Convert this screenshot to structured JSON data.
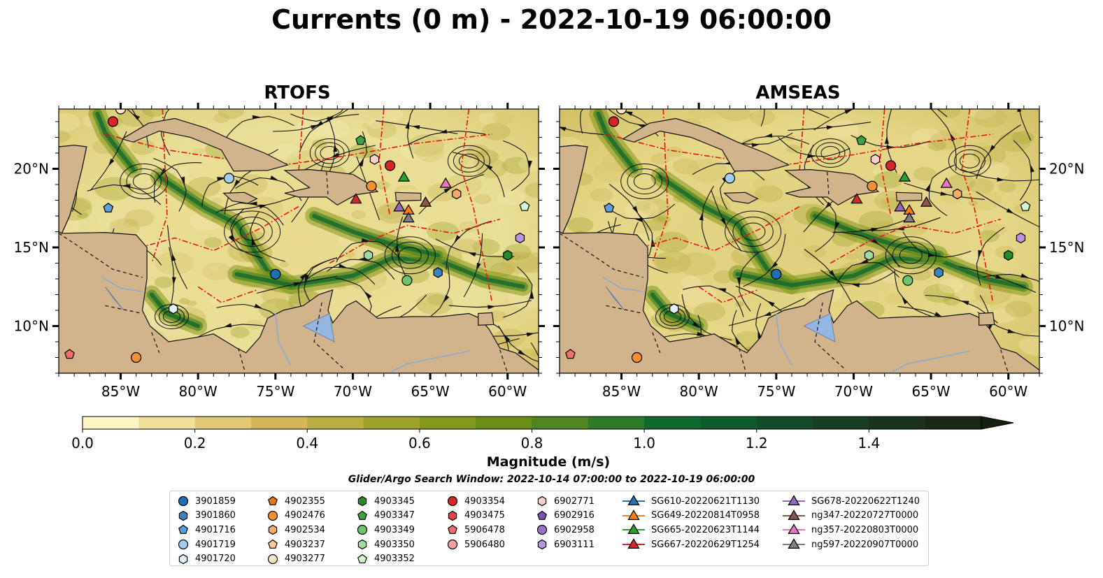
{
  "title": "Currents (0 m) - 2022-10-19 06:00:00",
  "panels": [
    {
      "title": "RTOFS"
    },
    {
      "title": "AMSEAS"
    }
  ],
  "lon_ticks": [
    "85°W",
    "80°W",
    "75°W",
    "70°W",
    "65°W",
    "60°W"
  ],
  "lat_ticks": [
    "20°N",
    "15°N",
    "10°N"
  ],
  "extent": {
    "lon_min": -89,
    "lon_max": -58,
    "lat_min": 7,
    "lat_max": 23.8
  },
  "colorbar": {
    "label": "Magnitude (m/s)",
    "min": 0.0,
    "max": 1.6,
    "extend": "max",
    "ticks": [
      "0.0",
      "0.2",
      "0.4",
      "0.6",
      "0.8",
      "1.0",
      "1.2",
      "1.4"
    ],
    "colors": [
      "#fbf6c4",
      "#efe19b",
      "#e0c874",
      "#d3b75a",
      "#b9ad44",
      "#9fa22f",
      "#85981d",
      "#6b8e18",
      "#4f8420",
      "#2e7a2a",
      "#10692e",
      "#0d5a2c",
      "#144c28",
      "#1a3e22",
      "#1b321c",
      "#1a2716"
    ]
  },
  "search_window": "Glider/Argo Search Window: 2022-10-14 07:00:00 to 2022-10-19 06:00:00",
  "legend": [
    [
      {
        "label": "3901859",
        "marker": "circle",
        "color": "#1f6fb4"
      },
      {
        "label": "3901860",
        "marker": "hexagon",
        "color": "#3a83c0"
      },
      {
        "label": "4901716",
        "marker": "pentagon",
        "color": "#5a9fd8"
      },
      {
        "label": "4901719",
        "marker": "circle",
        "color": "#a5cdef"
      },
      {
        "label": "4901720",
        "marker": "hexagon",
        "color": "#e3f1fc"
      }
    ],
    [
      {
        "label": "4902355",
        "marker": "pentagon",
        "color": "#e07a10"
      },
      {
        "label": "4902476",
        "marker": "circle",
        "color": "#f39132"
      },
      {
        "label": "4902534",
        "marker": "hexagon",
        "color": "#f7ac65"
      },
      {
        "label": "4903237",
        "marker": "pentagon",
        "color": "#fbc898"
      },
      {
        "label": "4903277",
        "marker": "circle",
        "color": "#fde3c9"
      }
    ],
    [
      {
        "label": "4903345",
        "marker": "hexagon",
        "color": "#2a8a2a"
      },
      {
        "label": "4903347",
        "marker": "pentagon",
        "color": "#3da43d"
      },
      {
        "label": "4903349",
        "marker": "circle",
        "color": "#6cc46c"
      },
      {
        "label": "4903350",
        "marker": "hexagon",
        "color": "#9edd9e"
      },
      {
        "label": "4903352",
        "marker": "pentagon",
        "color": "#d4f5d0"
      }
    ],
    [
      {
        "label": "4903354",
        "marker": "circle",
        "color": "#d62728"
      },
      {
        "label": "4903475",
        "marker": "hexagon",
        "color": "#e04545"
      },
      {
        "label": "5906478",
        "marker": "pentagon",
        "color": "#f07070"
      },
      {
        "label": "5906480",
        "marker": "circle",
        "color": "#f7a0a0"
      }
    ],
    [
      {
        "label": "6902771",
        "marker": "hexagon",
        "color": "#f9cfd0"
      },
      {
        "label": "6902916",
        "marker": "pentagon",
        "color": "#7b52b0"
      },
      {
        "label": "6902958",
        "marker": "circle",
        "color": "#9a72c8"
      },
      {
        "label": "6903111",
        "marker": "hexagon",
        "color": "#b895df"
      }
    ],
    [
      {
        "label": "SG610-20220621T1130",
        "marker": "triangle-line",
        "color": "#1f77b4"
      },
      {
        "label": "SG649-20220814T0958",
        "marker": "triangle-line",
        "color": "#ff7f0e"
      },
      {
        "label": "SG665-20220623T1144",
        "marker": "triangle-line",
        "color": "#2ca02c"
      },
      {
        "label": "SG667-20220629T1254",
        "marker": "triangle-line",
        "color": "#d62728"
      }
    ],
    [
      {
        "label": "SG678-20220622T1240",
        "marker": "triangle-line",
        "color": "#9467bd"
      },
      {
        "label": "ng347-20220727T0000",
        "marker": "triangle-line",
        "color": "#8c564b"
      },
      {
        "label": "ng357-20220803T0000",
        "marker": "triangle-line",
        "color": "#e377c2"
      },
      {
        "label": "ng597-20220907T0000",
        "marker": "triangle-line",
        "color": "#7f7f7f"
      }
    ]
  ],
  "map_markers": [
    {
      "lon": -85.5,
      "lat": 23.0,
      "marker": "circle",
      "color": "#d62728"
    },
    {
      "lon": -85.0,
      "lat": 23.8,
      "marker": "circle",
      "color": "#fde3c9"
    },
    {
      "lon": -85.8,
      "lat": 17.5,
      "marker": "pentagon",
      "color": "#5a9fd8"
    },
    {
      "lon": -78.0,
      "lat": 19.4,
      "marker": "circle",
      "color": "#a5cdef"
    },
    {
      "lon": -81.6,
      "lat": 11.1,
      "marker": "hexagon",
      "color": "#e3f1fc"
    },
    {
      "lon": -88.3,
      "lat": 8.2,
      "marker": "pentagon",
      "color": "#f07070"
    },
    {
      "lon": -84.0,
      "lat": 8.0,
      "marker": "circle",
      "color": "#f39132"
    },
    {
      "lon": -75.0,
      "lat": 13.3,
      "marker": "circle",
      "color": "#1f6fb4"
    },
    {
      "lon": -69.5,
      "lat": 21.8,
      "marker": "pentagon",
      "color": "#3da43d"
    },
    {
      "lon": -68.6,
      "lat": 20.6,
      "marker": "hexagon",
      "color": "#f9cfd0"
    },
    {
      "lon": -67.6,
      "lat": 20.2,
      "marker": "circle",
      "color": "#d62728"
    },
    {
      "lon": -68.8,
      "lat": 18.9,
      "marker": "circle",
      "color": "#f39132"
    },
    {
      "lon": -69.0,
      "lat": 14.5,
      "marker": "hexagon",
      "color": "#9edd9e"
    },
    {
      "lon": -66.5,
      "lat": 12.9,
      "marker": "circle",
      "color": "#6cc46c"
    },
    {
      "lon": -64.5,
      "lat": 13.4,
      "marker": "hexagon",
      "color": "#3a83c0"
    },
    {
      "lon": -63.3,
      "lat": 18.4,
      "marker": "hexagon",
      "color": "#f7ac65"
    },
    {
      "lon": -60.0,
      "lat": 14.5,
      "marker": "hexagon",
      "color": "#2a8a2a"
    },
    {
      "lon": -59.2,
      "lat": 15.6,
      "marker": "hexagon",
      "color": "#b895df"
    },
    {
      "lon": -58.9,
      "lat": 17.6,
      "marker": "pentagon",
      "color": "#d4f5d0"
    },
    {
      "lon": -69.8,
      "lat": 18.1,
      "marker": "triangle",
      "color": "#d62728"
    },
    {
      "lon": -66.7,
      "lat": 19.5,
      "marker": "triangle",
      "color": "#2ca02c"
    },
    {
      "lon": -64.0,
      "lat": 19.1,
      "marker": "triangle",
      "color": "#e377c2"
    },
    {
      "lon": -67.0,
      "lat": 17.6,
      "marker": "triangle",
      "color": "#9467bd"
    },
    {
      "lon": -66.4,
      "lat": 17.4,
      "marker": "triangle",
      "color": "#ff7f0e"
    },
    {
      "lon": -65.3,
      "lat": 17.9,
      "marker": "triangle",
      "color": "#8c564b"
    },
    {
      "lon": -66.4,
      "lat": 16.9,
      "marker": "triangle",
      "color": "#7f7f7f"
    }
  ]
}
